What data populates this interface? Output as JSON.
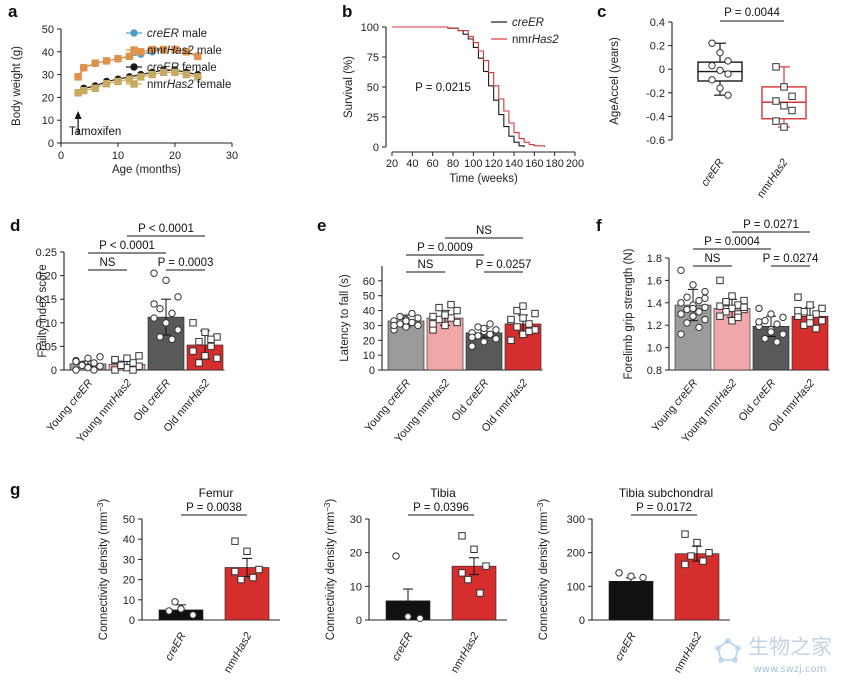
{
  "panel_letters": {
    "a": "a",
    "b": "b",
    "c": "c",
    "d": "d",
    "e": "e",
    "f": "f",
    "g": "g"
  },
  "colors": {
    "creER_male": "#4a9ac8",
    "nmrHas2_male": "#e0914a",
    "creER_female": "#1a1a1a",
    "nmrHas2_female": "#c8a960",
    "creER_line": "#1a1a1a",
    "nmrHas2_line": "#d8343c",
    "young_creER": "#9b9b9b",
    "young_nmrHas2": "#f0a7a7",
    "old_creER": "#595959",
    "old_nmrHas2": "#d62d2d",
    "creER_bar": "#111111",
    "nmrHas2_bar": "#d62d2d"
  },
  "chart_data": [
    {
      "id": "a",
      "type": "line",
      "xlabel": "Age (months)",
      "ylabel": "Body weight (g)",
      "xlim": [
        0,
        30
      ],
      "ylim": [
        0,
        50
      ],
      "xticks": [
        "0",
        "10",
        "20",
        "30"
      ],
      "yticks": [
        "0",
        "10",
        "20",
        "30",
        "40",
        "50"
      ],
      "annotation": "Tamoxifen",
      "annotation_x": 3,
      "series": [
        {
          "name_pre": "",
          "name_it": "creER",
          "name_post": " male",
          "color": "creER_male",
          "marker": "circle",
          "x": [
            3,
            4,
            6,
            8,
            10,
            12,
            14,
            16,
            18,
            20,
            22,
            24
          ],
          "y": [
            29,
            33,
            35,
            36,
            37,
            38,
            39,
            40,
            41,
            41,
            40,
            38
          ]
        },
        {
          "name_pre": "nmr",
          "name_it": "Has2",
          "name_post": " male",
          "color": "nmrHas2_male",
          "marker": "square",
          "x": [
            3,
            4,
            6,
            8,
            10,
            12,
            14,
            16,
            18,
            20,
            22,
            24
          ],
          "y": [
            29,
            33,
            35,
            36,
            37,
            38,
            40,
            41,
            41,
            41,
            40,
            38
          ]
        },
        {
          "name_pre": "",
          "name_it": "creER",
          "name_post": " female",
          "color": "creER_female",
          "marker": "circle",
          "x": [
            3,
            4,
            6,
            8,
            10,
            12,
            14,
            16,
            18,
            20,
            22,
            24
          ],
          "y": [
            22,
            24,
            25,
            27,
            28,
            29,
            30,
            31,
            32,
            32,
            31,
            30
          ]
        },
        {
          "name_pre": "nmr",
          "name_it": "Has2",
          "name_post": " female",
          "color": "nmrHas2_female",
          "marker": "square",
          "x": [
            3,
            4,
            6,
            8,
            10,
            12,
            14,
            16,
            18,
            20,
            22,
            24
          ],
          "y": [
            22,
            23,
            24,
            26,
            27,
            28,
            29,
            30,
            31,
            31,
            30,
            29
          ]
        }
      ]
    },
    {
      "id": "b",
      "type": "line",
      "xlabel": "Time (weeks)",
      "ylabel": "Survival (%)",
      "xlim": [
        20,
        200
      ],
      "ylim": [
        0,
        100
      ],
      "xticks": [
        "20",
        "40",
        "60",
        "80",
        "100",
        "120",
        "140",
        "160",
        "180",
        "200"
      ],
      "yticks": [
        "0",
        "25",
        "50",
        "75",
        "100"
      ],
      "annotation": "P = 0.0215",
      "series": [
        {
          "name_pre": "",
          "name_it": "creER",
          "name_post": "",
          "color": "creER_line",
          "x": [
            20,
            60,
            75,
            85,
            90,
            95,
            100,
            105,
            110,
            115,
            120,
            125,
            130,
            135,
            140,
            145,
            150
          ],
          "y": [
            100,
            100,
            99,
            97,
            94,
            90,
            83,
            74,
            63,
            51,
            39,
            27,
            17,
            9,
            4,
            1,
            0
          ]
        },
        {
          "name_pre": "nmr",
          "name_it": "Has2",
          "name_post": "",
          "color": "nmrHas2_line",
          "x": [
            20,
            60,
            75,
            85,
            95,
            100,
            105,
            110,
            115,
            120,
            125,
            130,
            135,
            140,
            145,
            150,
            155,
            160,
            170
          ],
          "y": [
            100,
            100,
            99,
            97,
            92,
            87,
            80,
            72,
            62,
            51,
            40,
            30,
            20,
            12,
            7,
            4,
            2,
            1,
            0
          ]
        }
      ]
    },
    {
      "id": "c",
      "type": "box",
      "ylabel": "AgeAccel (years)",
      "ylim": [
        -0.6,
        0.4
      ],
      "yticks": [
        "-0.6",
        "-0.4",
        "-0.2",
        "0",
        "0.2",
        "0.4"
      ],
      "categories_it": [
        "creER",
        "Has2"
      ],
      "categories_pre": [
        "",
        "nmr"
      ],
      "pvalue": "P = 0.0044",
      "boxes": [
        {
          "color": "creER_line",
          "median": -0.02,
          "q1": -0.1,
          "q3": 0.06,
          "min": -0.22,
          "max": 0.22,
          "points": [
            0.22,
            0.14,
            0.07,
            0.03,
            -0.01,
            -0.04,
            -0.09,
            -0.16,
            -0.22
          ]
        },
        {
          "color": "nmrHas2_line",
          "median": -0.28,
          "q1": -0.42,
          "q3": -0.15,
          "min": -0.49,
          "max": 0.02,
          "points": [
            0.02,
            -0.15,
            -0.23,
            -0.27,
            -0.31,
            -0.35,
            -0.44,
            -0.49
          ]
        }
      ]
    },
    {
      "id": "d",
      "type": "bar",
      "ylabel": "Frailty index score",
      "ylim": [
        0,
        0.25
      ],
      "yticks": [
        "0",
        "0.05",
        "0.10",
        "0.15",
        "0.20",
        "0.25"
      ],
      "categories": [
        {
          "pre": "Young ",
          "it": "creER",
          "post": ""
        },
        {
          "pre": "Young nmr",
          "it": "Has2",
          "post": ""
        },
        {
          "pre": "Old ",
          "it": "creER",
          "post": ""
        },
        {
          "pre": "Old nmr",
          "it": "Has2",
          "post": ""
        }
      ],
      "bar_colors": [
        "young_creER",
        "young_nmrHas2",
        "old_creER",
        "old_nmrHas2"
      ],
      "values": [
        0.013,
        0.012,
        0.112,
        0.053
      ],
      "errors": [
        0.006,
        0.006,
        0.038,
        0.03
      ],
      "points": [
        [
          0.0,
          0.005,
          0.008,
          0.012,
          0.015,
          0.02,
          0.025,
          0.028,
          0.01,
          0.0,
          0.018
        ],
        [
          0.0,
          0.005,
          0.008,
          0.012,
          0.015,
          0.02,
          0.025,
          0.03,
          0.01,
          0.0,
          0.022
        ],
        [
          0.205,
          0.19,
          0.155,
          0.13,
          0.12,
          0.11,
          0.1,
          0.085,
          0.07,
          0.065,
          0.14
        ],
        [
          0.1,
          0.08,
          0.07,
          0.06,
          0.05,
          0.04,
          0.03,
          0.025,
          0.015,
          0.065
        ]
      ],
      "comparisons": [
        {
          "a": 0,
          "b": 1,
          "label": "NS",
          "level": 0
        },
        {
          "a": 2,
          "b": 3,
          "label": "P = 0.0003",
          "level": 0
        },
        {
          "a": 0,
          "b": 2,
          "label": "P < 0.0001",
          "level": 1
        },
        {
          "a": 1,
          "b": 3,
          "label": "P < 0.0001",
          "level": 2
        }
      ]
    },
    {
      "id": "e",
      "type": "bar",
      "ylabel": "Latency to fall (s)",
      "ylim": [
        0,
        70
      ],
      "yticks": [
        "0",
        "10",
        "20",
        "30",
        "40",
        "50",
        "60"
      ],
      "categories": [
        {
          "pre": "Young ",
          "it": "creER",
          "post": ""
        },
        {
          "pre": "Young nmr",
          "it": "Has2",
          "post": ""
        },
        {
          "pre": "Old ",
          "it": "creER",
          "post": ""
        },
        {
          "pre": "Old nmr",
          "it": "Has2",
          "post": ""
        }
      ],
      "bar_colors": [
        "young_creER",
        "young_nmrHas2",
        "old_creER",
        "old_nmrHas2"
      ],
      "values": [
        33,
        35,
        25,
        31
      ],
      "errors": [
        4,
        5,
        3,
        6
      ],
      "points": [
        [
          27,
          29,
          30,
          31,
          32,
          33,
          34,
          35,
          36,
          38,
          30,
          33
        ],
        [
          27,
          30,
          32,
          34,
          35,
          36,
          38,
          40,
          42,
          44,
          31,
          37
        ],
        [
          16,
          19,
          21,
          23,
          24,
          25,
          26,
          27,
          29,
          31,
          22,
          28
        ],
        [
          20,
          24,
          27,
          29,
          31,
          33,
          35,
          38,
          40,
          26,
          34,
          43
        ]
      ],
      "comparisons": [
        {
          "a": 0,
          "b": 1,
          "label": "NS",
          "level": 0
        },
        {
          "a": 2,
          "b": 3,
          "label": "P = 0.0257",
          "level": 0
        },
        {
          "a": 0,
          "b": 2,
          "label": "P = 0.0009",
          "level": 1
        },
        {
          "a": 1,
          "b": 3,
          "label": "NS",
          "level": 2
        }
      ]
    },
    {
      "id": "f",
      "type": "bar",
      "ylabel": "Forelimb grip strength (N)",
      "ylim": [
        0.8,
        1.8
      ],
      "yticks": [
        "0.8",
        "1.0",
        "1.2",
        "1.4",
        "1.6",
        "1.8"
      ],
      "categories": [
        {
          "pre": "Young ",
          "it": "creER",
          "post": ""
        },
        {
          "pre": "Young nmr",
          "it": "Has2",
          "post": ""
        },
        {
          "pre": "Old ",
          "it": "creER",
          "post": ""
        },
        {
          "pre": "Old nmr",
          "it": "Has2",
          "post": ""
        }
      ],
      "bar_colors": [
        "young_creER",
        "young_nmrHas2",
        "old_creER",
        "old_nmrHas2"
      ],
      "values": [
        1.38,
        1.35,
        1.19,
        1.28
      ],
      "errors": [
        0.14,
        0.08,
        0.09,
        0.08
      ],
      "points": [
        [
          1.69,
          1.56,
          1.5,
          1.45,
          1.42,
          1.4,
          1.38,
          1.36,
          1.34,
          1.32,
          1.3,
          1.28,
          1.25,
          1.22,
          1.18,
          1.12,
          1.35,
          1.44
        ],
        [
          1.6,
          1.46,
          1.42,
          1.4,
          1.38,
          1.37,
          1.35,
          1.34,
          1.32,
          1.3,
          1.28,
          1.24,
          1.36,
          1.41,
          1.27
        ],
        [
          1.35,
          1.3,
          1.27,
          1.24,
          1.21,
          1.19,
          1.16,
          1.12,
          1.08,
          1.05,
          1.23,
          1.14
        ],
        [
          1.45,
          1.38,
          1.35,
          1.32,
          1.3,
          1.28,
          1.26,
          1.24,
          1.2,
          1.17,
          1.33,
          1.22
        ]
      ],
      "comparisons": [
        {
          "a": 0,
          "b": 1,
          "label": "NS",
          "level": 0
        },
        {
          "a": 2,
          "b": 3,
          "label": "P = 0.0274",
          "level": 0
        },
        {
          "a": 0,
          "b": 2,
          "label": "P = 0.0004",
          "level": 1
        },
        {
          "a": 1,
          "b": 3,
          "label": "P = 0.0271",
          "level": 2
        }
      ]
    },
    {
      "id": "g1",
      "type": "bar",
      "title": "Femur",
      "ylabel_pre": "Connectivity density (mm",
      "ylabel_sup": "−3",
      "ylabel_post": ")",
      "ylim": [
        0,
        50
      ],
      "yticks": [
        "0",
        "10",
        "20",
        "30",
        "40",
        "50"
      ],
      "categories": [
        {
          "pre": "",
          "it": "creER",
          "post": ""
        },
        {
          "pre": "nmr",
          "it": "Has2",
          "post": ""
        }
      ],
      "bar_colors": [
        "creER_bar",
        "nmrHas2_bar"
      ],
      "values": [
        5,
        26
      ],
      "errors": [
        2.5,
        4.5
      ],
      "points": [
        [
          4.5,
          5.5,
          2.5,
          9
        ],
        [
          39,
          34,
          25,
          20,
          21,
          24
        ]
      ],
      "comparisons": [
        {
          "a": 0,
          "b": 1,
          "label": "P = 0.0038",
          "level": 0
        }
      ]
    },
    {
      "id": "g2",
      "type": "bar",
      "title": "Tibia",
      "ylabel_pre": "Connectivity density (mm",
      "ylabel_sup": "−3",
      "ylabel_post": ")",
      "ylim": [
        0,
        30
      ],
      "yticks": [
        "0",
        "10",
        "20",
        "30"
      ],
      "categories": [
        {
          "pre": "",
          "it": "creER",
          "post": ""
        },
        {
          "pre": "nmr",
          "it": "Has2",
          "post": ""
        }
      ],
      "bar_colors": [
        "creER_bar",
        "nmrHas2_bar"
      ],
      "values": [
        5.7,
        16
      ],
      "errors": [
        3.5,
        2.5
      ],
      "points": [
        [
          19,
          1,
          0.5
        ],
        [
          25,
          21,
          16,
          12,
          8,
          14
        ]
      ],
      "comparisons": [
        {
          "a": 0,
          "b": 1,
          "label": "P = 0.0396",
          "level": 0
        }
      ]
    },
    {
      "id": "g3",
      "type": "bar",
      "title": "Tibia subchondral",
      "ylabel_pre": "Connectivity density (mm",
      "ylabel_sup": "−3",
      "ylabel_post": ")",
      "ylim": [
        0,
        300
      ],
      "yticks": [
        "0",
        "100",
        "200",
        "300"
      ],
      "categories": [
        {
          "pre": "",
          "it": "creER",
          "post": ""
        },
        {
          "pre": "nmr",
          "it": "Has2",
          "post": ""
        }
      ],
      "bar_colors": [
        "creER_bar",
        "nmrHas2_bar"
      ],
      "values": [
        115,
        197
      ],
      "errors": [
        10,
        22
      ],
      "points": [
        [
          140,
          130,
          126
        ],
        [
          255,
          230,
          200,
          190,
          175,
          165
        ]
      ],
      "comparisons": [
        {
          "a": 0,
          "b": 1,
          "label": "P = 0.0172",
          "level": 0
        }
      ]
    }
  ],
  "watermark": {
    "cn": "生物之家",
    "url": "www.swzj.com"
  }
}
